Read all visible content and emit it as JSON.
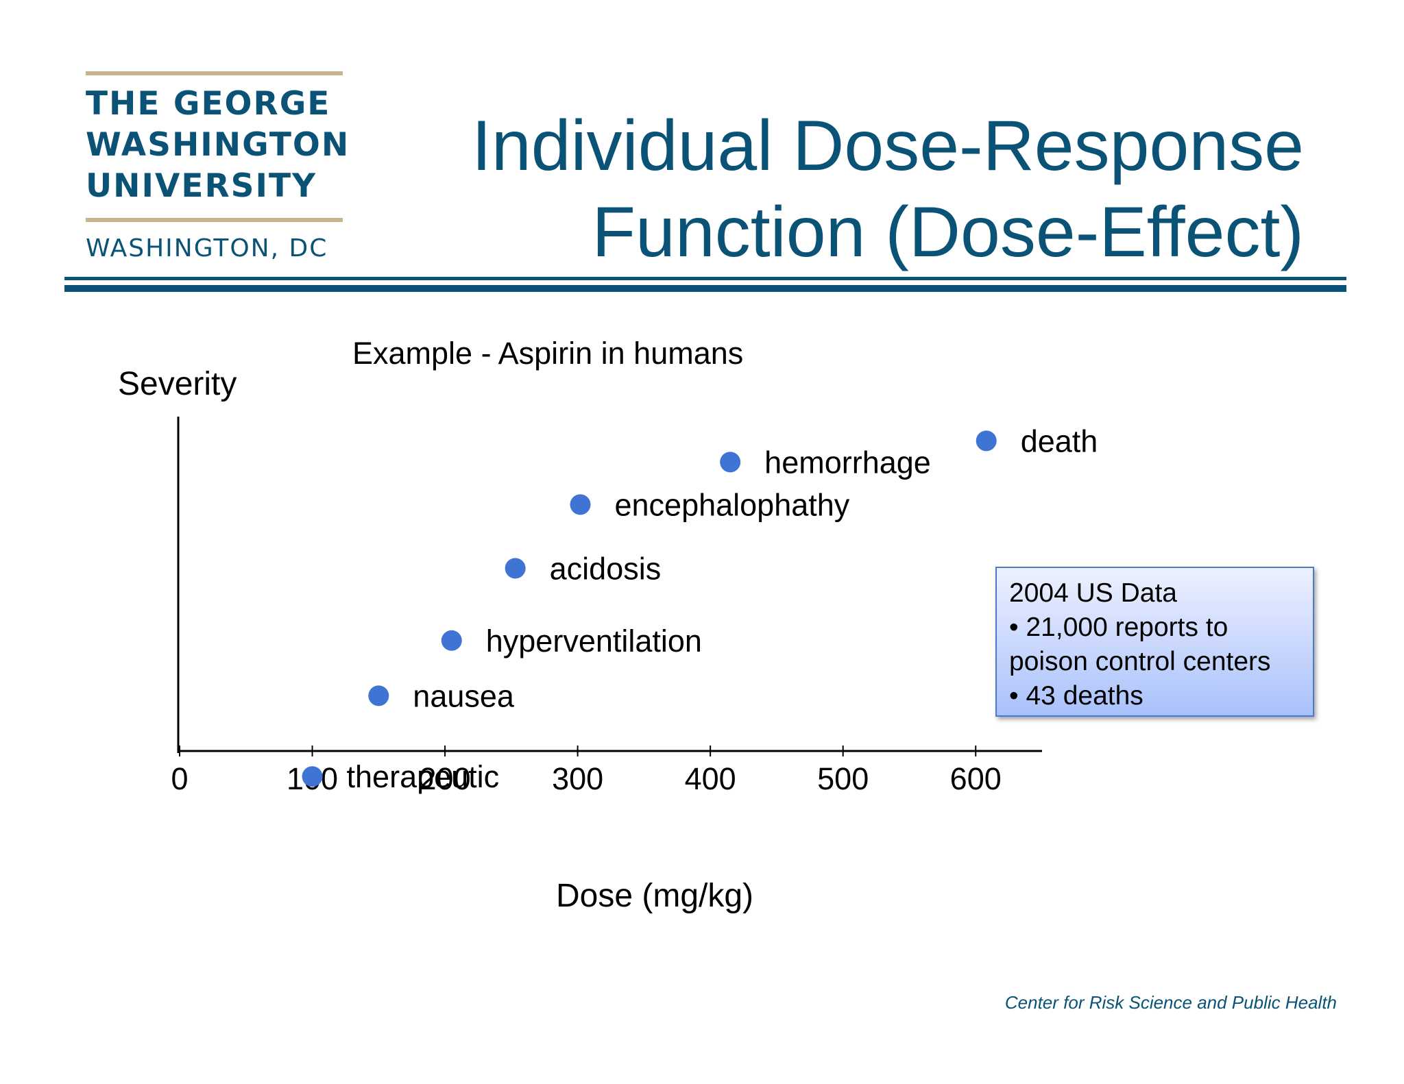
{
  "logo": {
    "line1": "THE GEORGE",
    "line2": "WASHINGTON",
    "line3": "UNIVERSITY",
    "city": "WASHINGTON, DC"
  },
  "title": {
    "line1": "Individual Dose-Response",
    "line2": "Function (Dose-Effect)"
  },
  "chart_data": {
    "type": "scatter",
    "title": "Example - Aspirin in humans",
    "xlabel": "Dose (mg/kg)",
    "ylabel": "Severity",
    "xlim": [
      0,
      650
    ],
    "ylim": [
      -1,
      8
    ],
    "xticks": [
      0,
      100,
      200,
      300,
      400,
      500,
      600
    ],
    "grid": false,
    "points": [
      {
        "x": 100,
        "y": -0.6,
        "label": "therapeutic"
      },
      {
        "x": 150,
        "y": 1.3,
        "label": "nausea"
      },
      {
        "x": 205,
        "y": 2.6,
        "label": "hyperventilation"
      },
      {
        "x": 253,
        "y": 4.3,
        "label": "acidosis"
      },
      {
        "x": 302,
        "y": 5.8,
        "label": "encephalophathy"
      },
      {
        "x": 415,
        "y": 6.8,
        "label": "hemorrhage"
      },
      {
        "x": 608,
        "y": 7.3,
        "label": "death"
      }
    ],
    "point_color": "#3f74d4"
  },
  "infobox": {
    "line1": "2004 US Data",
    "line2": "• 21,000 reports to",
    "line3": "poison control centers",
    "line4": "• 43 deaths"
  },
  "footer": "Center for Risk Science and Public Health",
  "colors": {
    "brand_blue": "#0a5276",
    "gold_rule": "#c7b48b"
  }
}
